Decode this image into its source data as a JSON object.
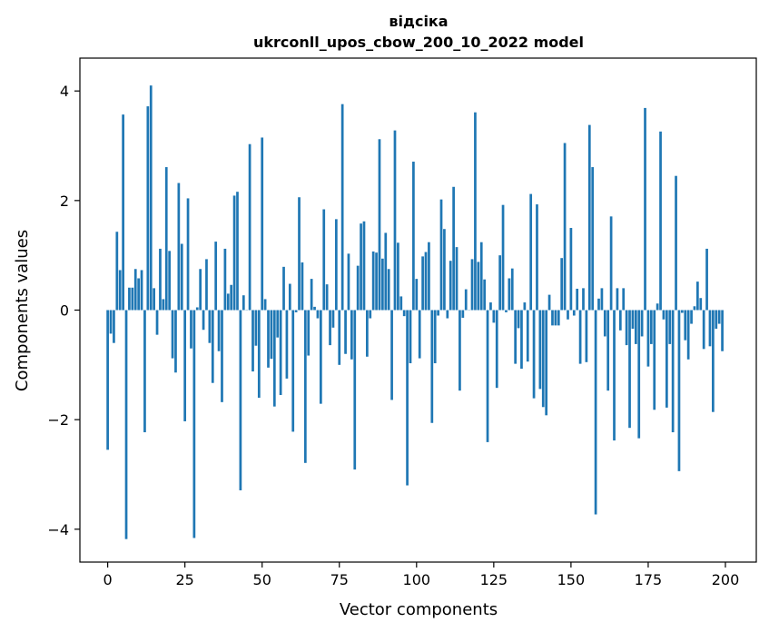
{
  "chart_data": {
    "type": "bar",
    "title": "відсіка",
    "subtitle": "ukrconll_upos_cbow_200_10_2022 model",
    "xlabel": "Vector components",
    "ylabel": "Components values",
    "xlim": [
      -9,
      210
    ],
    "ylim": [
      -4.6,
      4.6
    ],
    "xticks": [
      0,
      25,
      50,
      75,
      100,
      125,
      150,
      175,
      200
    ],
    "yticks": [
      -4,
      -2,
      0,
      2,
      4
    ],
    "grid": false,
    "bar_color": "#1f77b4",
    "x": [
      0,
      1,
      2,
      3,
      4,
      5,
      6,
      7,
      8,
      9,
      10,
      11,
      12,
      13,
      14,
      15,
      16,
      17,
      18,
      19,
      20,
      21,
      22,
      23,
      24,
      25,
      26,
      27,
      28,
      29,
      30,
      31,
      32,
      33,
      34,
      35,
      36,
      37,
      38,
      39,
      40,
      41,
      42,
      43,
      44,
      45,
      46,
      47,
      48,
      49,
      50,
      51,
      52,
      53,
      54,
      55,
      56,
      57,
      58,
      59,
      60,
      61,
      62,
      63,
      64,
      65,
      66,
      67,
      68,
      69,
      70,
      71,
      72,
      73,
      74,
      75,
      76,
      77,
      78,
      79,
      80,
      81,
      82,
      83,
      84,
      85,
      86,
      87,
      88,
      89,
      90,
      91,
      92,
      93,
      94,
      95,
      96,
      97,
      98,
      99,
      100,
      101,
      102,
      103,
      104,
      105,
      106,
      107,
      108,
      109,
      110,
      111,
      112,
      113,
      114,
      115,
      116,
      117,
      118,
      119,
      120,
      121,
      122,
      123,
      124,
      125,
      126,
      127,
      128,
      129,
      130,
      131,
      132,
      133,
      134,
      135,
      136,
      137,
      138,
      139,
      140,
      141,
      142,
      143,
      144,
      145,
      146,
      147,
      148,
      149,
      150,
      151,
      152,
      153,
      154,
      155,
      156,
      157,
      158,
      159,
      160,
      161,
      162,
      163,
      164,
      165,
      166,
      167,
      168,
      169,
      170,
      171,
      172,
      173,
      174,
      175,
      176,
      177,
      178,
      179,
      180,
      181,
      182,
      183,
      184,
      185,
      186,
      187,
      188,
      189,
      190,
      191,
      192,
      193,
      194,
      195,
      196,
      197,
      198,
      199
    ],
    "values": [
      -2.55,
      -0.43,
      -0.6,
      1.43,
      0.73,
      3.57,
      -4.18,
      0.41,
      0.41,
      0.75,
      0.58,
      0.73,
      -2.23,
      3.72,
      4.1,
      0.4,
      -0.45,
      1.12,
      0.2,
      2.61,
      1.08,
      -0.88,
      -1.14,
      2.32,
      1.21,
      -2.03,
      2.04,
      -0.7,
      -4.16,
      0.05,
      0.75,
      -0.36,
      0.93,
      -0.6,
      -1.33,
      1.25,
      -0.75,
      -1.68,
      1.12,
      0.3,
      0.46,
      2.09,
      2.16,
      -3.29,
      0.27,
      0.0,
      3.03,
      -1.12,
      -0.65,
      -1.6,
      3.15,
      0.2,
      -1.05,
      -0.89,
      -1.76,
      -0.5,
      -1.55,
      0.79,
      -1.25,
      0.48,
      -2.22,
      -0.04,
      2.06,
      0.87,
      -2.79,
      -0.83,
      0.57,
      0.06,
      -0.15,
      -1.71,
      1.84,
      0.47,
      -0.64,
      -0.32,
      1.66,
      -1.0,
      3.76,
      -0.8,
      1.03,
      -0.9,
      -2.91,
      0.81,
      1.58,
      1.62,
      -0.85,
      -0.15,
      1.07,
      1.05,
      3.12,
      0.94,
      1.41,
      0.75,
      -1.64,
      3.28,
      1.23,
      0.25,
      -0.11,
      -3.2,
      -0.97,
      2.71,
      0.57,
      -0.88,
      0.98,
      1.06,
      1.24,
      -2.06,
      -0.97,
      -0.1,
      2.02,
      1.48,
      -0.15,
      0.9,
      2.25,
      1.15,
      -1.47,
      -0.14,
      0.38,
      0.0,
      0.93,
      3.61,
      0.88,
      1.24,
      0.56,
      -2.41,
      0.14,
      -0.23,
      -1.42,
      1.0,
      1.92,
      -0.04,
      0.58,
      0.76,
      -0.98,
      -0.33,
      -1.07,
      0.14,
      -0.94,
      2.12,
      -1.61,
      1.93,
      -1.44,
      -1.77,
      -1.92,
      0.28,
      -0.28,
      -0.28,
      -0.28,
      0.95,
      3.05,
      -0.17,
      1.5,
      -0.1,
      0.39,
      -0.98,
      0.4,
      -0.95,
      3.38,
      2.61,
      -3.73,
      0.21,
      0.4,
      -0.48,
      -1.47,
      1.71,
      -2.38,
      0.4,
      -0.37,
      0.4,
      -0.64,
      -2.15,
      -0.34,
      -0.62,
      -2.34,
      -0.48,
      3.69,
      -1.03,
      -0.62,
      -1.82,
      0.12,
      3.26,
      -0.17,
      -1.78,
      -0.62,
      -2.23,
      2.45,
      -2.94,
      -0.05,
      -0.55,
      -0.9,
      -0.25,
      0.07,
      0.52,
      0.22,
      -0.71,
      1.12,
      -0.66,
      -1.86,
      -0.34,
      -0.25,
      -0.75
    ]
  }
}
